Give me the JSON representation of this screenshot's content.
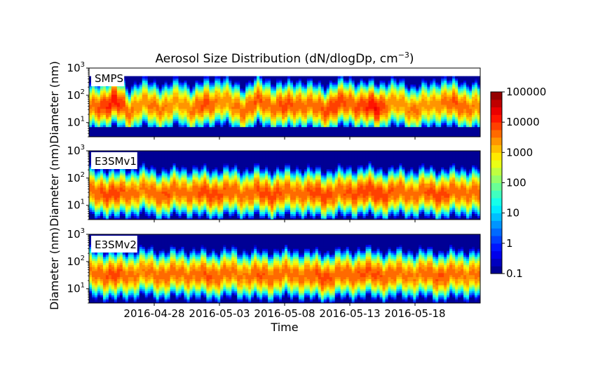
{
  "chart_data": {
    "type": "heatmap",
    "title": "Aerosol Size Distribution (dN/dlogDp, cm",
    "title_sup": "−3",
    "title_close": ")",
    "xlabel": "Time",
    "ylabel": "Diameter (nm)",
    "x_range": [
      "2016-04-23",
      "2016-05-23"
    ],
    "x_ticks": [
      "2016-04-28",
      "2016-05-03",
      "2016-05-08",
      "2016-05-13",
      "2016-05-18"
    ],
    "y_scale": "log",
    "y_range_nm": [
      3,
      1000
    ],
    "y_ticks": [
      {
        "base": "10",
        "exp": "1"
      },
      {
        "base": "10",
        "exp": "2"
      },
      {
        "base": "10",
        "exp": "3"
      }
    ],
    "colormap": "jet",
    "colorbar_scale": "log",
    "colorbar_range": [
      0.1,
      100000
    ],
    "colorbar_ticks": [
      "100000",
      "10000",
      "1000",
      "100",
      "10",
      "1",
      "0.1"
    ],
    "panels": [
      {
        "name": "SMPS",
        "valid_diameter_nm": [
          7,
          500
        ],
        "mode_center_nm": [
          30,
          45,
          60,
          25,
          50,
          40,
          35,
          55,
          30,
          45,
          70,
          40,
          30,
          60,
          45,
          35,
          50,
          40,
          30,
          45,
          55,
          40,
          35,
          50,
          45,
          30,
          40,
          60,
          45,
          40,
          35
        ],
        "peak_log10_concentration": [
          3.5,
          3.9,
          4.2,
          3.6,
          3.4,
          3.6,
          3.5,
          3.3,
          3.6,
          3.9,
          3.4,
          3.5,
          3.7,
          3.8,
          3.6,
          3.9,
          3.7,
          3.6,
          3.8,
          4.0,
          3.7,
          3.9,
          4.3,
          3.5,
          3.4,
          3.6,
          3.3,
          3.5,
          3.8,
          3.6,
          3.4
        ]
      },
      {
        "name": "E3SMv1",
        "mode_center_nm": [
          28,
          32,
          25,
          30,
          35,
          28,
          26,
          33,
          30,
          27,
          29,
          31,
          28,
          30,
          26,
          29,
          32,
          27,
          25,
          28,
          30,
          33,
          29,
          27,
          31,
          28,
          30,
          27,
          29,
          32,
          30
        ],
        "peak_log10_concentration": [
          3.6,
          3.8,
          3.9,
          3.7,
          3.5,
          3.7,
          3.8,
          3.6,
          3.7,
          3.9,
          3.8,
          3.7,
          3.6,
          3.8,
          3.9,
          3.7,
          3.6,
          3.8,
          3.9,
          3.7,
          3.8,
          3.9,
          4.0,
          3.8,
          3.7,
          3.6,
          3.8,
          3.9,
          3.7,
          3.6,
          3.7
        ]
      },
      {
        "name": "E3SMv2",
        "mode_center_nm": [
          35,
          38,
          30,
          33,
          40,
          36,
          32,
          38,
          35,
          30,
          34,
          37,
          33,
          30,
          32,
          35,
          36,
          30,
          28,
          32,
          34,
          38,
          35,
          32,
          36,
          33,
          35,
          30,
          34,
          36,
          35
        ],
        "peak_log10_concentration": [
          3.5,
          3.7,
          3.9,
          3.6,
          3.5,
          3.6,
          3.7,
          3.6,
          3.6,
          3.8,
          3.7,
          3.6,
          3.5,
          3.8,
          3.7,
          3.6,
          3.6,
          3.7,
          3.9,
          3.7,
          3.7,
          3.8,
          3.8,
          3.7,
          3.6,
          3.5,
          3.7,
          3.8,
          3.6,
          3.5,
          3.6
        ]
      }
    ]
  }
}
